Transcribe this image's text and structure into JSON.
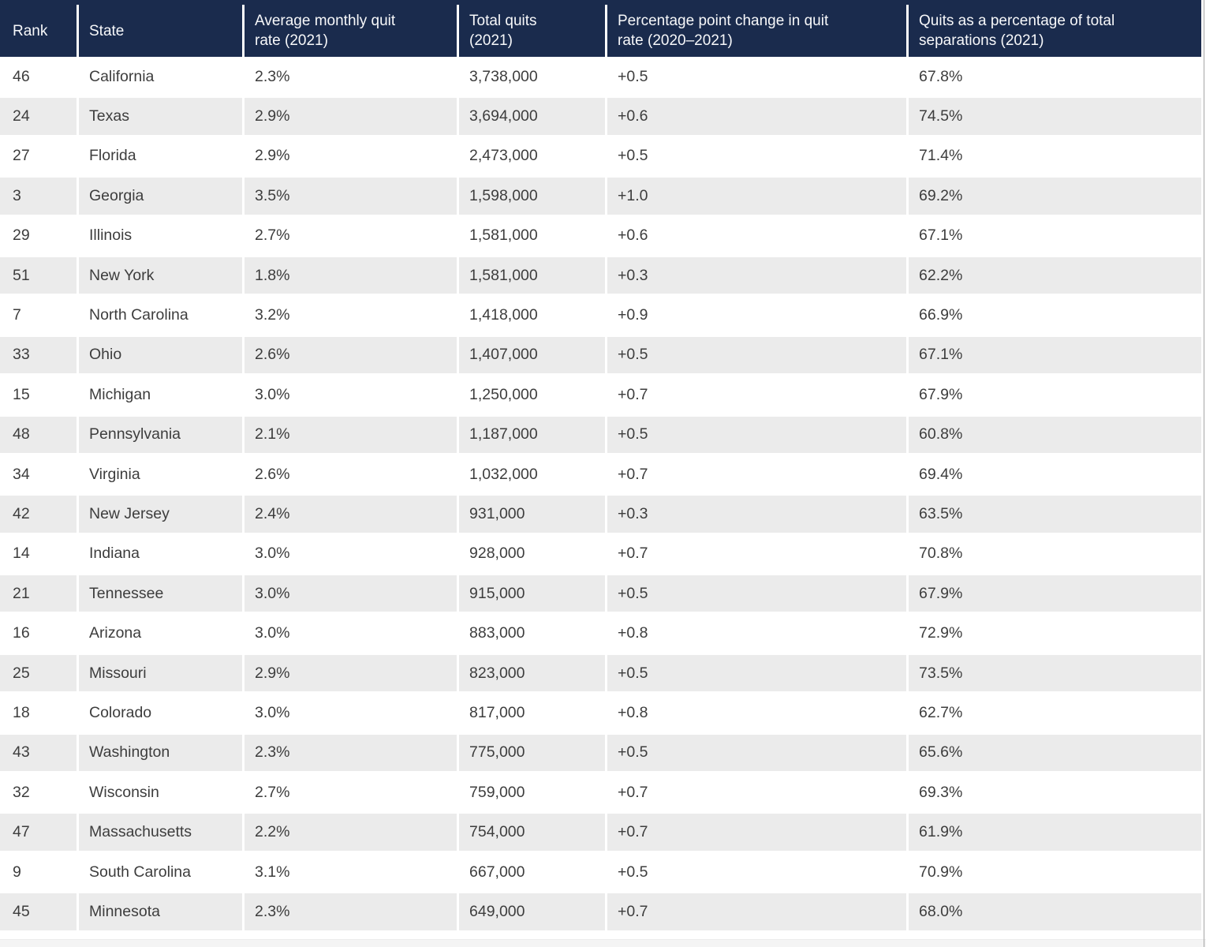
{
  "chart_data": {
    "type": "table",
    "title": "",
    "columns": [
      {
        "key": "rank",
        "label": "Rank"
      },
      {
        "key": "state",
        "label": "State"
      },
      {
        "key": "avg_monthly_quit_rate_2021",
        "label": "Average monthly quit\nrate (2021)"
      },
      {
        "key": "total_quits_2021",
        "label": "Total quits\n(2021)"
      },
      {
        "key": "pct_point_change_quit_rate_2020_2021",
        "label": "Percentage point change in quit\nrate (2020–2021)"
      },
      {
        "key": "quits_pct_of_total_separations_2021",
        "label": "Quits as a percentage of total\nseparations (2021)"
      }
    ],
    "rows": [
      [
        "46",
        "California",
        "2.3%",
        "3,738,000",
        "+0.5",
        "67.8%"
      ],
      [
        "24",
        "Texas",
        "2.9%",
        "3,694,000",
        "+0.6",
        "74.5%"
      ],
      [
        "27",
        "Florida",
        "2.9%",
        "2,473,000",
        "+0.5",
        "71.4%"
      ],
      [
        "3",
        "Georgia",
        "3.5%",
        "1,598,000",
        "+1.0",
        "69.2%"
      ],
      [
        "29",
        "Illinois",
        "2.7%",
        "1,581,000",
        "+0.6",
        "67.1%"
      ],
      [
        "51",
        "New York",
        "1.8%",
        "1,581,000",
        "+0.3",
        "62.2%"
      ],
      [
        "7",
        "North Carolina",
        "3.2%",
        "1,418,000",
        "+0.9",
        "66.9%"
      ],
      [
        "33",
        "Ohio",
        "2.6%",
        "1,407,000",
        "+0.5",
        "67.1%"
      ],
      [
        "15",
        "Michigan",
        "3.0%",
        "1,250,000",
        "+0.7",
        "67.9%"
      ],
      [
        "48",
        "Pennsylvania",
        "2.1%",
        "1,187,000",
        "+0.5",
        "60.8%"
      ],
      [
        "34",
        "Virginia",
        "2.6%",
        "1,032,000",
        "+0.7",
        "69.4%"
      ],
      [
        "42",
        "New Jersey",
        "2.4%",
        "931,000",
        "+0.3",
        "63.5%"
      ],
      [
        "14",
        "Indiana",
        "3.0%",
        "928,000",
        "+0.7",
        "70.8%"
      ],
      [
        "21",
        "Tennessee",
        "3.0%",
        "915,000",
        "+0.5",
        "67.9%"
      ],
      [
        "16",
        "Arizona",
        "3.0%",
        "883,000",
        "+0.8",
        "72.9%"
      ],
      [
        "25",
        "Missouri",
        "2.9%",
        "823,000",
        "+0.5",
        "73.5%"
      ],
      [
        "18",
        "Colorado",
        "3.0%",
        "817,000",
        "+0.8",
        "62.7%"
      ],
      [
        "43",
        "Washington",
        "2.3%",
        "775,000",
        "+0.5",
        "65.6%"
      ],
      [
        "32",
        "Wisconsin",
        "2.7%",
        "759,000",
        "+0.7",
        "69.3%"
      ],
      [
        "47",
        "Massachusetts",
        "2.2%",
        "754,000",
        "+0.7",
        "61.9%"
      ],
      [
        "9",
        "South Carolina",
        "3.1%",
        "667,000",
        "+0.5",
        "70.9%"
      ],
      [
        "45",
        "Minnesota",
        "2.3%",
        "649,000",
        "+0.7",
        "68.0%"
      ]
    ],
    "layout_hints": {
      "striped_rows": true,
      "stripe_pattern": "even rows gray, odd rows white",
      "header_position": "top"
    }
  },
  "colors": {
    "header_bg": "#1a2b4d",
    "header_text": "#f7f8fa",
    "row_stripe": "#ebebeb",
    "body_text": "#3d3d3d",
    "edge_line": "#a6a6a6",
    "bottom_strip": "#f4f4f4"
  }
}
